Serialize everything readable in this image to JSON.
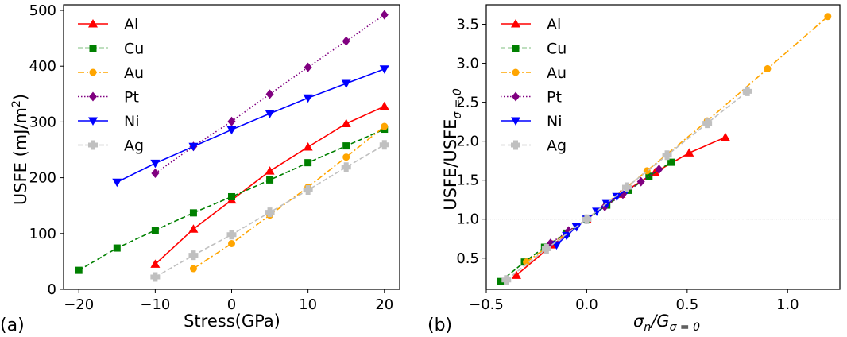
{
  "chart_data": [
    {
      "panel_label": "(a)",
      "type": "line",
      "xlabel": "Stress(GPa)",
      "ylabel_main": "USFE (mJ/m",
      "ylabel_sup": "2",
      "ylabel_tail": ")",
      "xlim": [
        -22,
        22
      ],
      "ylim": [
        0,
        510
      ],
      "xticks": [
        -20,
        -10,
        0,
        10,
        20
      ],
      "yticks": [
        0,
        100,
        200,
        300,
        400,
        500
      ],
      "xtick_labels": [
        "−20",
        "−10",
        "0",
        "10",
        "20"
      ],
      "ytick_labels": [
        "0",
        "100",
        "200",
        "300",
        "400",
        "500"
      ],
      "legend_position": "upper-left",
      "series": [
        {
          "name": "Al",
          "color": "#ff0000",
          "marker": "triangle-up",
          "dash": "solid",
          "x": [
            -10,
            -5,
            0,
            5,
            10,
            15,
            20
          ],
          "y": [
            45,
            108,
            160,
            212,
            255,
            297,
            328
          ]
        },
        {
          "name": "Cu",
          "color": "#008000",
          "marker": "square",
          "dash": "dashed",
          "x": [
            -20,
            -15,
            -10,
            -5,
            0,
            5,
            10,
            15,
            20
          ],
          "y": [
            34,
            74,
            106,
            137,
            166,
            196,
            227,
            257,
            287
          ]
        },
        {
          "name": "Au",
          "color": "#ffa500",
          "marker": "circle",
          "dash": "dashdot",
          "x": [
            -5,
            0,
            5,
            10,
            15,
            20
          ],
          "y": [
            37,
            82,
            133,
            183,
            237,
            292
          ]
        },
        {
          "name": "Pt",
          "color": "#800080",
          "marker": "diamond",
          "dash": "dotted",
          "x": [
            -10,
            -5,
            0,
            5,
            10,
            15,
            20
          ],
          "y": [
            208,
            256,
            301,
            350,
            398,
            445,
            492
          ]
        },
        {
          "name": "Ni",
          "color": "#0000ff",
          "marker": "triangle-down",
          "dash": "solid",
          "x": [
            -15,
            -10,
            -5,
            0,
            5,
            10,
            15,
            20
          ],
          "y": [
            192,
            226,
            256,
            286,
            315,
            343,
            369,
            395
          ]
        },
        {
          "name": "Ag",
          "color": "#c0c0c0",
          "marker": "plus",
          "dash": "dashed",
          "x": [
            -10,
            -5,
            0,
            5,
            10,
            15,
            20
          ],
          "y": [
            22,
            61,
            98,
            138,
            178,
            219,
            259
          ]
        }
      ]
    },
    {
      "panel_label": "(b)",
      "type": "line",
      "xlabel": "σ",
      "xlabel_sub": "n",
      "xlabel_mid": "/G",
      "xlabel_sub2": "σ = 0",
      "ylabel_main": "USFE/USFE",
      "ylabel_sub": "σ = 0",
      "xlim": [
        -0.5,
        1.26
      ],
      "ylim": [
        0.1,
        3.75
      ],
      "xticks": [
        -0.5,
        0.0,
        0.5,
        1.0
      ],
      "yticks": [
        0.5,
        1.0,
        1.5,
        2.0,
        2.5,
        3.0,
        3.5
      ],
      "xtick_labels": [
        "−0.5",
        "0.0",
        "0.5",
        "1.0"
      ],
      "ytick_labels": [
        "0.5",
        "1.0",
        "1.5",
        "2.0",
        "2.5",
        "3.0",
        "3.5"
      ],
      "reference_line_y": 1.0,
      "legend_position": "upper-left",
      "series": [
        {
          "name": "Al",
          "color": "#ff0000",
          "marker": "triangle-up",
          "dash": "solid",
          "x": [
            -0.35,
            -0.17,
            0.0,
            0.17,
            0.34,
            0.51,
            0.69
          ],
          "y": [
            0.28,
            0.67,
            1.0,
            1.32,
            1.6,
            1.85,
            2.05
          ]
        },
        {
          "name": "Cu",
          "color": "#008000",
          "marker": "square",
          "dash": "dashed",
          "x": [
            -0.43,
            -0.31,
            -0.21,
            -0.1,
            0.0,
            0.1,
            0.21,
            0.31,
            0.42
          ],
          "y": [
            0.2,
            0.45,
            0.64,
            0.82,
            1.0,
            1.18,
            1.37,
            1.55,
            1.73
          ]
        },
        {
          "name": "Au",
          "color": "#ffa500",
          "marker": "circle",
          "dash": "dashdot",
          "x": [
            -0.3,
            0.0,
            0.3,
            0.6,
            0.9,
            1.2
          ],
          "y": [
            0.45,
            1.0,
            1.62,
            2.26,
            2.93,
            3.6
          ]
        },
        {
          "name": "Pt",
          "color": "#800080",
          "marker": "diamond",
          "dash": "dotted",
          "x": [
            -0.18,
            -0.09,
            0.0,
            0.09,
            0.18,
            0.27,
            0.36
          ],
          "y": [
            0.69,
            0.85,
            1.0,
            1.16,
            1.32,
            1.48,
            1.64
          ]
        },
        {
          "name": "Ni",
          "color": "#0000ff",
          "marker": "triangle-down",
          "dash": "solid",
          "x": [
            -0.15,
            -0.1,
            -0.05,
            0.0,
            0.05,
            0.1,
            0.15,
            0.2
          ],
          "y": [
            0.67,
            0.79,
            0.9,
            1.0,
            1.1,
            1.2,
            1.29,
            1.38
          ]
        },
        {
          "name": "Ag",
          "color": "#c0c0c0",
          "marker": "plus",
          "dash": "dashed",
          "x": [
            -0.4,
            -0.2,
            0.0,
            0.2,
            0.4,
            0.6,
            0.8
          ],
          "y": [
            0.22,
            0.62,
            1.0,
            1.41,
            1.82,
            2.23,
            2.64
          ]
        }
      ]
    }
  ]
}
